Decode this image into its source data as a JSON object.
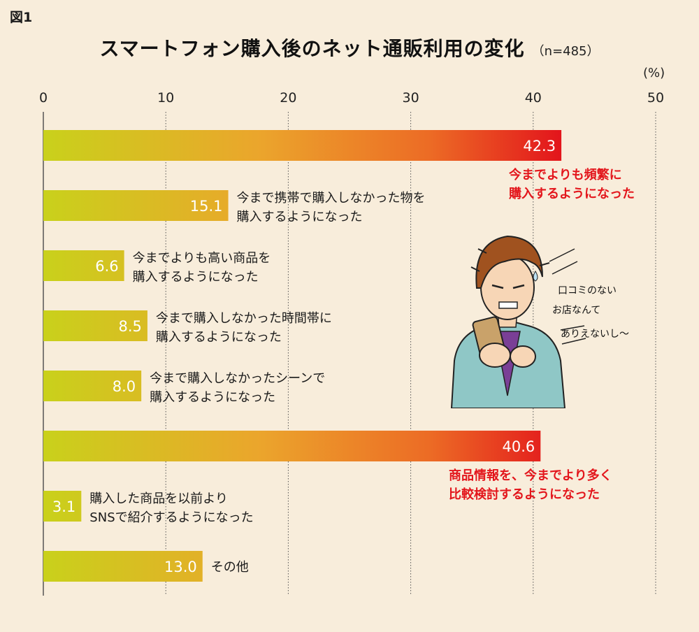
{
  "figure_label": "図1",
  "unit_label": "(%)",
  "illustration": {
    "icon": "man-using-smartphone",
    "speech_lines": [
      "口コミのない",
      "お店なんて",
      "ありえないし〜"
    ]
  },
  "colors": {
    "background": "#f8eddb",
    "bar_start": "#c9d11b",
    "bar_mid": "#eba52c",
    "bar_end": "#e3161c",
    "highlight_text": "#e3161c",
    "grid": "#555555"
  },
  "chart_data": {
    "type": "bar",
    "orientation": "horizontal",
    "title": "スマートフォン購入後のネット通販利用の変化",
    "subtitle": "（n=485）",
    "xlabel": "",
    "ylabel": "",
    "xlim": [
      0,
      50
    ],
    "ticks": [
      0,
      10,
      20,
      30,
      40,
      50
    ],
    "grid": "dotted vertical",
    "categories": [
      {
        "lines": [
          "今までよりも頻繁に",
          "購入するようになった"
        ],
        "highlight": true
      },
      {
        "lines": [
          "今まで携帯で購入しなかった物を",
          "購入するようになった"
        ],
        "highlight": false
      },
      {
        "lines": [
          "今までよりも高い商品を",
          "購入するようになった"
        ],
        "highlight": false
      },
      {
        "lines": [
          "今まで購入しなかった時間帯に",
          "購入するようになった"
        ],
        "highlight": false
      },
      {
        "lines": [
          "今まで購入しなかったシーンで",
          "購入するようになった"
        ],
        "highlight": false
      },
      {
        "lines": [
          "商品情報を、今までより多く",
          "比較検討するようになった"
        ],
        "highlight": true
      },
      {
        "lines": [
          "購入した商品を以前より",
          "SNSで紹介するようになった"
        ],
        "highlight": false
      },
      {
        "lines": [
          "その他"
        ],
        "highlight": false
      }
    ],
    "values": [
      42.3,
      15.1,
      6.6,
      8.5,
      8.0,
      40.6,
      3.1,
      13.0
    ],
    "value_labels": [
      "42.3",
      "15.1",
      "6.6",
      "8.5",
      "8.0",
      "40.6",
      "3.1",
      "13.0"
    ]
  }
}
